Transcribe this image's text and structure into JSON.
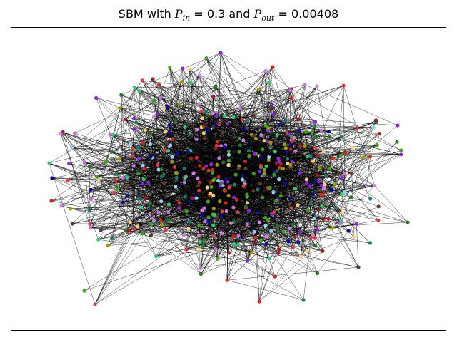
{
  "title": {
    "prefix": "SBM with ",
    "p_in_sym": "P",
    "p_in_sub": "in",
    "p_in_eq": " = 0.3 and ",
    "p_out_sym": "P",
    "p_out_sub": "out",
    "p_out_eq": " = 0.00408"
  },
  "graph": {
    "model": "stochastic block model",
    "p_in": 0.3,
    "p_out": 0.00408,
    "edge_color": "#000000",
    "community_colors": [
      "#8b22e0",
      "#1f7a1f",
      "#2ecc71",
      "#a01d1d",
      "#8bd3f7",
      "#9b9b00",
      "#f5cf7a",
      "#0a0a9e",
      "#5c3d2e",
      "#e0383c",
      "#c46fe0",
      "#1e7a6e",
      "#3aa11a",
      "#d07de8",
      "#cc2a1a"
    ]
  }
}
